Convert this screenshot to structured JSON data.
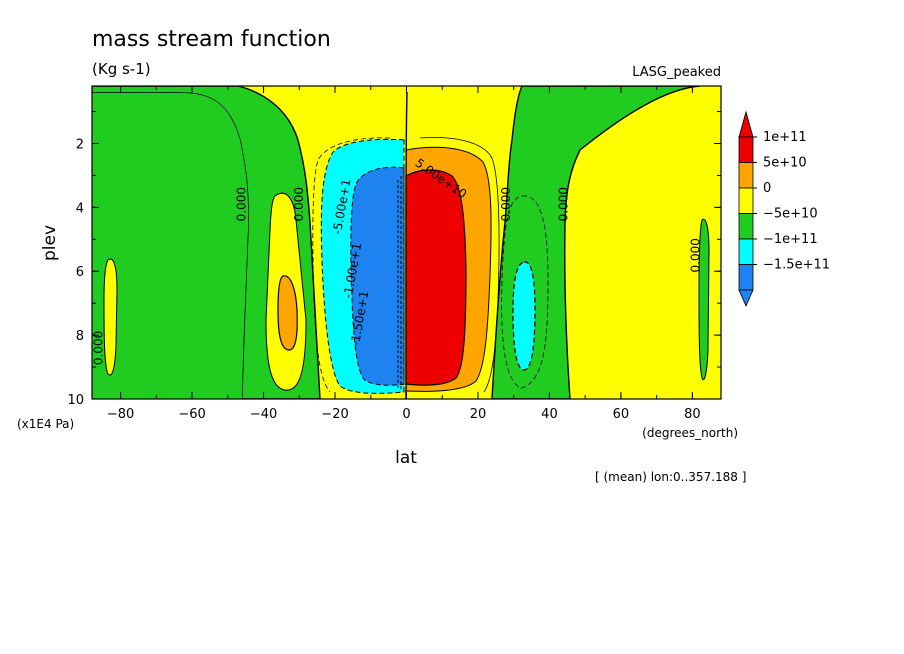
{
  "chart_data": {
    "type": "heatmap",
    "title": "mass stream function",
    "units": "(Kg s-1)",
    "dataset_label": "LASG_peaked",
    "xlabel": "lat",
    "ylabel": "plev",
    "x_units": "(degrees_north)",
    "y_units": "(x1E4 Pa)",
    "footnote": "[ (mean) lon:0..357.188 ]",
    "xlim": [
      -88,
      88
    ],
    "ylim": [
      10,
      0.2
    ],
    "x_ticks": [
      -80,
      -60,
      -40,
      -20,
      0,
      20,
      40,
      60,
      80
    ],
    "y_ticks": [
      2,
      4,
      6,
      8,
      10
    ],
    "x_tick_labels": [
      "−80",
      "−60",
      "−40",
      "−20",
      "0",
      "20",
      "40",
      "60",
      "80"
    ],
    "y_tick_labels": [
      "2",
      "4",
      "6",
      "8",
      "10"
    ],
    "colorbar": {
      "levels": [
        "1e+11",
        "5e+10",
        "0",
        "−5e+10",
        "−1e+11",
        "−1.5e+11"
      ],
      "colors": [
        "#ee0000",
        "#ffa500",
        "#ffff00",
        "#1fcc1f",
        "#00ffff",
        "#1e82f0"
      ],
      "top_arrow": "#ee0000",
      "bottom_arrow": "#1e82f0"
    },
    "contour_labels": [
      {
        "text": "-5.00e+1",
        "lat": -17,
        "plev": 4.0,
        "rotate": -80
      },
      {
        "text": "-1.00e+1",
        "lat": -14,
        "plev": 6.0,
        "rotate": -80
      },
      {
        "text": "-1.50e+1",
        "lat": -12,
        "plev": 7.5,
        "rotate": -80
      },
      {
        "text": "5.00e+10",
        "lat": 9,
        "plev": 3.2,
        "rotate": 35
      },
      {
        "text": "0.000",
        "lat": -45,
        "plev": 3.9,
        "rotate": -90
      },
      {
        "text": "0.000",
        "lat": -29,
        "plev": 3.9,
        "rotate": -90
      },
      {
        "text": "0.000",
        "lat": 29,
        "plev": 3.9,
        "rotate": -90
      },
      {
        "text": "0.000",
        "lat": 45,
        "plev": 3.9,
        "rotate": -90
      },
      {
        "text": "0.000",
        "lat": 82,
        "plev": 5.5,
        "rotate": -90
      },
      {
        "text": "0.000",
        "lat": -85,
        "plev": 8.4,
        "rotate": -90
      }
    ]
  }
}
